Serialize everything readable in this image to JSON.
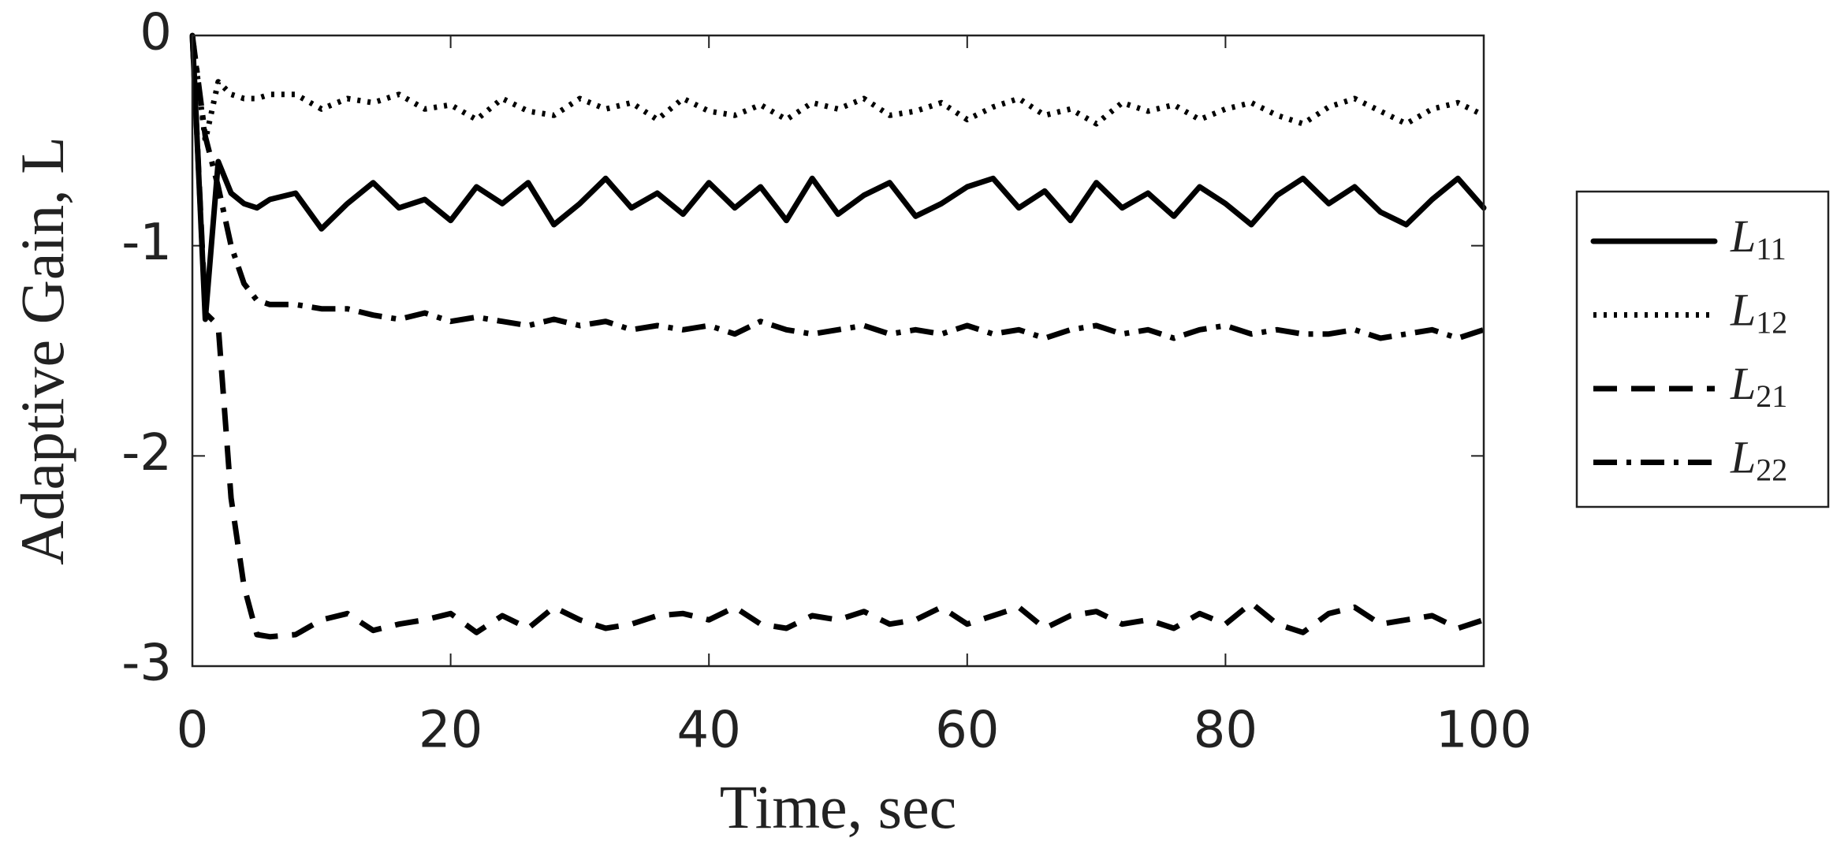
{
  "chart_data": {
    "type": "line",
    "xlabel": "Time, sec",
    "ylabel": "Adaptive Gain, L",
    "x": [
      0,
      1,
      2,
      3,
      4,
      5,
      6,
      8,
      10,
      12,
      14,
      16,
      18,
      20,
      22,
      24,
      26,
      28,
      30,
      32,
      34,
      36,
      38,
      40,
      42,
      44,
      46,
      48,
      50,
      52,
      54,
      56,
      58,
      60,
      62,
      64,
      66,
      68,
      70,
      72,
      74,
      76,
      78,
      80,
      82,
      84,
      86,
      88,
      90,
      92,
      94,
      96,
      98,
      100
    ],
    "series": [
      {
        "name": "L11",
        "color": "#000000",
        "dash": "solid",
        "values": [
          0,
          -1.35,
          -0.6,
          -0.75,
          -0.8,
          -0.82,
          -0.78,
          -0.75,
          -0.92,
          -0.8,
          -0.7,
          -0.82,
          -0.78,
          -0.88,
          -0.72,
          -0.8,
          -0.7,
          -0.9,
          -0.8,
          -0.68,
          -0.82,
          -0.75,
          -0.85,
          -0.7,
          -0.82,
          -0.72,
          -0.88,
          -0.68,
          -0.85,
          -0.76,
          -0.7,
          -0.86,
          -0.8,
          -0.72,
          -0.68,
          -0.82,
          -0.74,
          -0.88,
          -0.7,
          -0.82,
          -0.75,
          -0.86,
          -0.72,
          -0.8,
          -0.9,
          -0.76,
          -0.68,
          -0.8,
          -0.72,
          -0.84,
          -0.9,
          -0.78,
          -0.68,
          -0.82
        ]
      },
      {
        "name": "L12",
        "color": "#000000",
        "dash": "dotted",
        "values": [
          0,
          -0.5,
          -0.22,
          -0.28,
          -0.3,
          -0.3,
          -0.28,
          -0.28,
          -0.35,
          -0.3,
          -0.32,
          -0.28,
          -0.35,
          -0.33,
          -0.4,
          -0.3,
          -0.36,
          -0.38,
          -0.3,
          -0.35,
          -0.32,
          -0.4,
          -0.3,
          -0.36,
          -0.38,
          -0.33,
          -0.4,
          -0.32,
          -0.35,
          -0.3,
          -0.38,
          -0.36,
          -0.32,
          -0.4,
          -0.34,
          -0.3,
          -0.38,
          -0.35,
          -0.42,
          -0.32,
          -0.36,
          -0.33,
          -0.4,
          -0.35,
          -0.32,
          -0.38,
          -0.42,
          -0.34,
          -0.3,
          -0.36,
          -0.42,
          -0.35,
          -0.32,
          -0.38
        ]
      },
      {
        "name": "L21",
        "color": "#000000",
        "dash": "dashed",
        "values": [
          0,
          -1.32,
          -1.38,
          -2.2,
          -2.62,
          -2.85,
          -2.86,
          -2.85,
          -2.78,
          -2.75,
          -2.83,
          -2.8,
          -2.78,
          -2.75,
          -2.84,
          -2.76,
          -2.82,
          -2.72,
          -2.78,
          -2.82,
          -2.8,
          -2.76,
          -2.75,
          -2.78,
          -2.72,
          -2.8,
          -2.82,
          -2.76,
          -2.78,
          -2.74,
          -2.8,
          -2.78,
          -2.72,
          -2.8,
          -2.76,
          -2.72,
          -2.82,
          -2.76,
          -2.74,
          -2.8,
          -2.78,
          -2.82,
          -2.75,
          -2.8,
          -2.7,
          -2.8,
          -2.84,
          -2.75,
          -2.72,
          -2.8,
          -2.78,
          -2.76,
          -2.82,
          -2.78
        ]
      },
      {
        "name": "L22",
        "color": "#000000",
        "dash": "dashdot",
        "values": [
          0,
          -0.48,
          -0.72,
          -1.0,
          -1.18,
          -1.26,
          -1.28,
          -1.28,
          -1.3,
          -1.3,
          -1.33,
          -1.35,
          -1.32,
          -1.36,
          -1.34,
          -1.36,
          -1.38,
          -1.35,
          -1.38,
          -1.36,
          -1.4,
          -1.38,
          -1.4,
          -1.38,
          -1.42,
          -1.36,
          -1.4,
          -1.42,
          -1.4,
          -1.38,
          -1.42,
          -1.4,
          -1.42,
          -1.38,
          -1.42,
          -1.4,
          -1.44,
          -1.4,
          -1.38,
          -1.42,
          -1.4,
          -1.44,
          -1.4,
          -1.38,
          -1.42,
          -1.4,
          -1.42,
          -1.42,
          -1.4,
          -1.44,
          -1.42,
          -1.4,
          -1.44,
          -1.4
        ]
      }
    ],
    "xlim": [
      0,
      100
    ],
    "xticks": [
      0,
      20,
      40,
      60,
      80,
      100
    ],
    "ylim": [
      -3,
      0
    ],
    "yticks": [
      0,
      -1,
      -2,
      -3
    ],
    "grid": false,
    "legend": "outside right"
  }
}
